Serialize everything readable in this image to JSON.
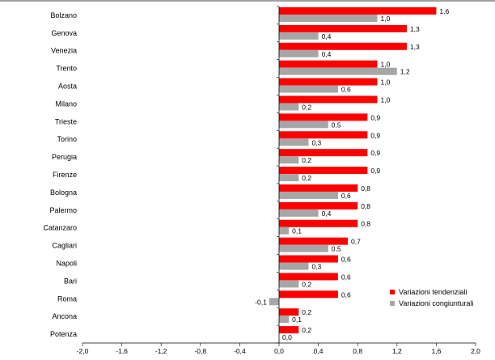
{
  "chart_data": {
    "type": "bar",
    "orientation": "horizontal",
    "categories": [
      "Bolzano",
      "Genova",
      "Venezia",
      "Trento",
      "Aosta",
      "Milano",
      "Trieste",
      "Torino",
      "Perugia",
      "Firenze",
      "Bologna",
      "Palermo",
      "Catanzaro",
      "Cagliari",
      "Napoli",
      "Bari",
      "Roma",
      "Ancona",
      "Potenza"
    ],
    "series": [
      {
        "name": "Variazioni tendenziali",
        "color": "#ff0000",
        "values": [
          1.6,
          1.3,
          1.3,
          1.0,
          1.0,
          1.0,
          0.9,
          0.9,
          0.9,
          0.9,
          0.8,
          0.8,
          0.8,
          0.7,
          0.6,
          0.6,
          0.6,
          0.2,
          0.2
        ],
        "labels": [
          "1,6",
          "1,3",
          "1,3",
          "1,0",
          "1,0",
          "1,0",
          "0,9",
          "0,9",
          "0,9",
          "0,9",
          "0,8",
          "0,8",
          "0,8",
          "0,7",
          "0,6",
          "0,6",
          "0,6",
          "0,2",
          "0,2"
        ]
      },
      {
        "name": "Variazioni congiunturali",
        "color": "#a6a6a6",
        "values": [
          1.0,
          0.4,
          0.4,
          1.2,
          0.6,
          0.2,
          0.5,
          0.3,
          0.2,
          0.2,
          0.6,
          0.4,
          0.1,
          0.5,
          0.3,
          0.2,
          -0.1,
          0.1,
          0.0
        ],
        "labels": [
          "1,0",
          "0,4",
          "0,4",
          "1,2",
          "0,6",
          "0,2",
          "0,5",
          "0,3",
          "0,2",
          "0,2",
          "0,6",
          "0,4",
          "0,1",
          "0,5",
          "0,3",
          "0,2",
          "-0,1",
          "0,1",
          "0,0"
        ]
      }
    ],
    "xlim": [
      -2.0,
      2.0
    ],
    "x_ticks": [
      -2.0,
      -1.6,
      -1.2,
      -0.8,
      -0.4,
      0.0,
      0.4,
      0.8,
      1.2,
      1.6,
      2.0
    ],
    "x_tick_labels": [
      "-2,0",
      "-1,6",
      "-1,2",
      "-0,8",
      "-0,4",
      "0,0",
      "0,4",
      "0,8",
      "1,2",
      "1,6",
      "2,0"
    ],
    "legend": {
      "position": "bottom-right"
    },
    "grid": false
  }
}
